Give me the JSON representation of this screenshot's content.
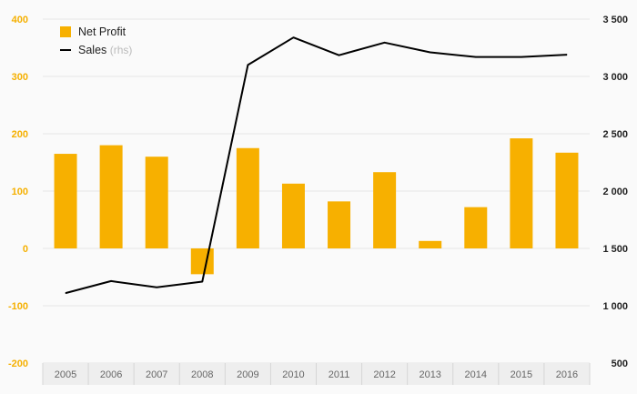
{
  "chart_data": {
    "type": "bar",
    "categories": [
      "2005",
      "2006",
      "2007",
      "2008",
      "2009",
      "2010",
      "2011",
      "2012",
      "2013",
      "2014",
      "2015",
      "2016"
    ],
    "series": [
      {
        "name": "Net Profit",
        "type": "bar",
        "axis": "left",
        "color": "#f7b000",
        "values": [
          165,
          180,
          160,
          -45,
          175,
          113,
          82,
          133,
          13,
          72,
          192,
          167
        ]
      },
      {
        "name": "Sales",
        "name_suffix": "(rhs)",
        "type": "line",
        "axis": "right",
        "color": "#000000",
        "values": [
          1110,
          1215,
          1160,
          1210,
          3100,
          3340,
          3185,
          3295,
          3210,
          3170,
          3170,
          3190
        ]
      }
    ],
    "ylim_left": [
      -200,
      400
    ],
    "ylim_right": [
      500,
      3500
    ],
    "left_ticks": [
      "400",
      "300",
      "200",
      "100",
      "0",
      "-100",
      "-200"
    ],
    "left_tick_values": [
      400,
      300,
      200,
      100,
      0,
      -100,
      -200
    ],
    "right_ticks": [
      "3 500",
      "3 000",
      "2 500",
      "2 000",
      "1 500",
      "1 000",
      "500"
    ],
    "right_tick_values": [
      3500,
      3000,
      2500,
      2000,
      1500,
      1000,
      500
    ],
    "grid": true,
    "legend_position": "top-left",
    "title": "",
    "xlabel": "",
    "ylabel": ""
  }
}
